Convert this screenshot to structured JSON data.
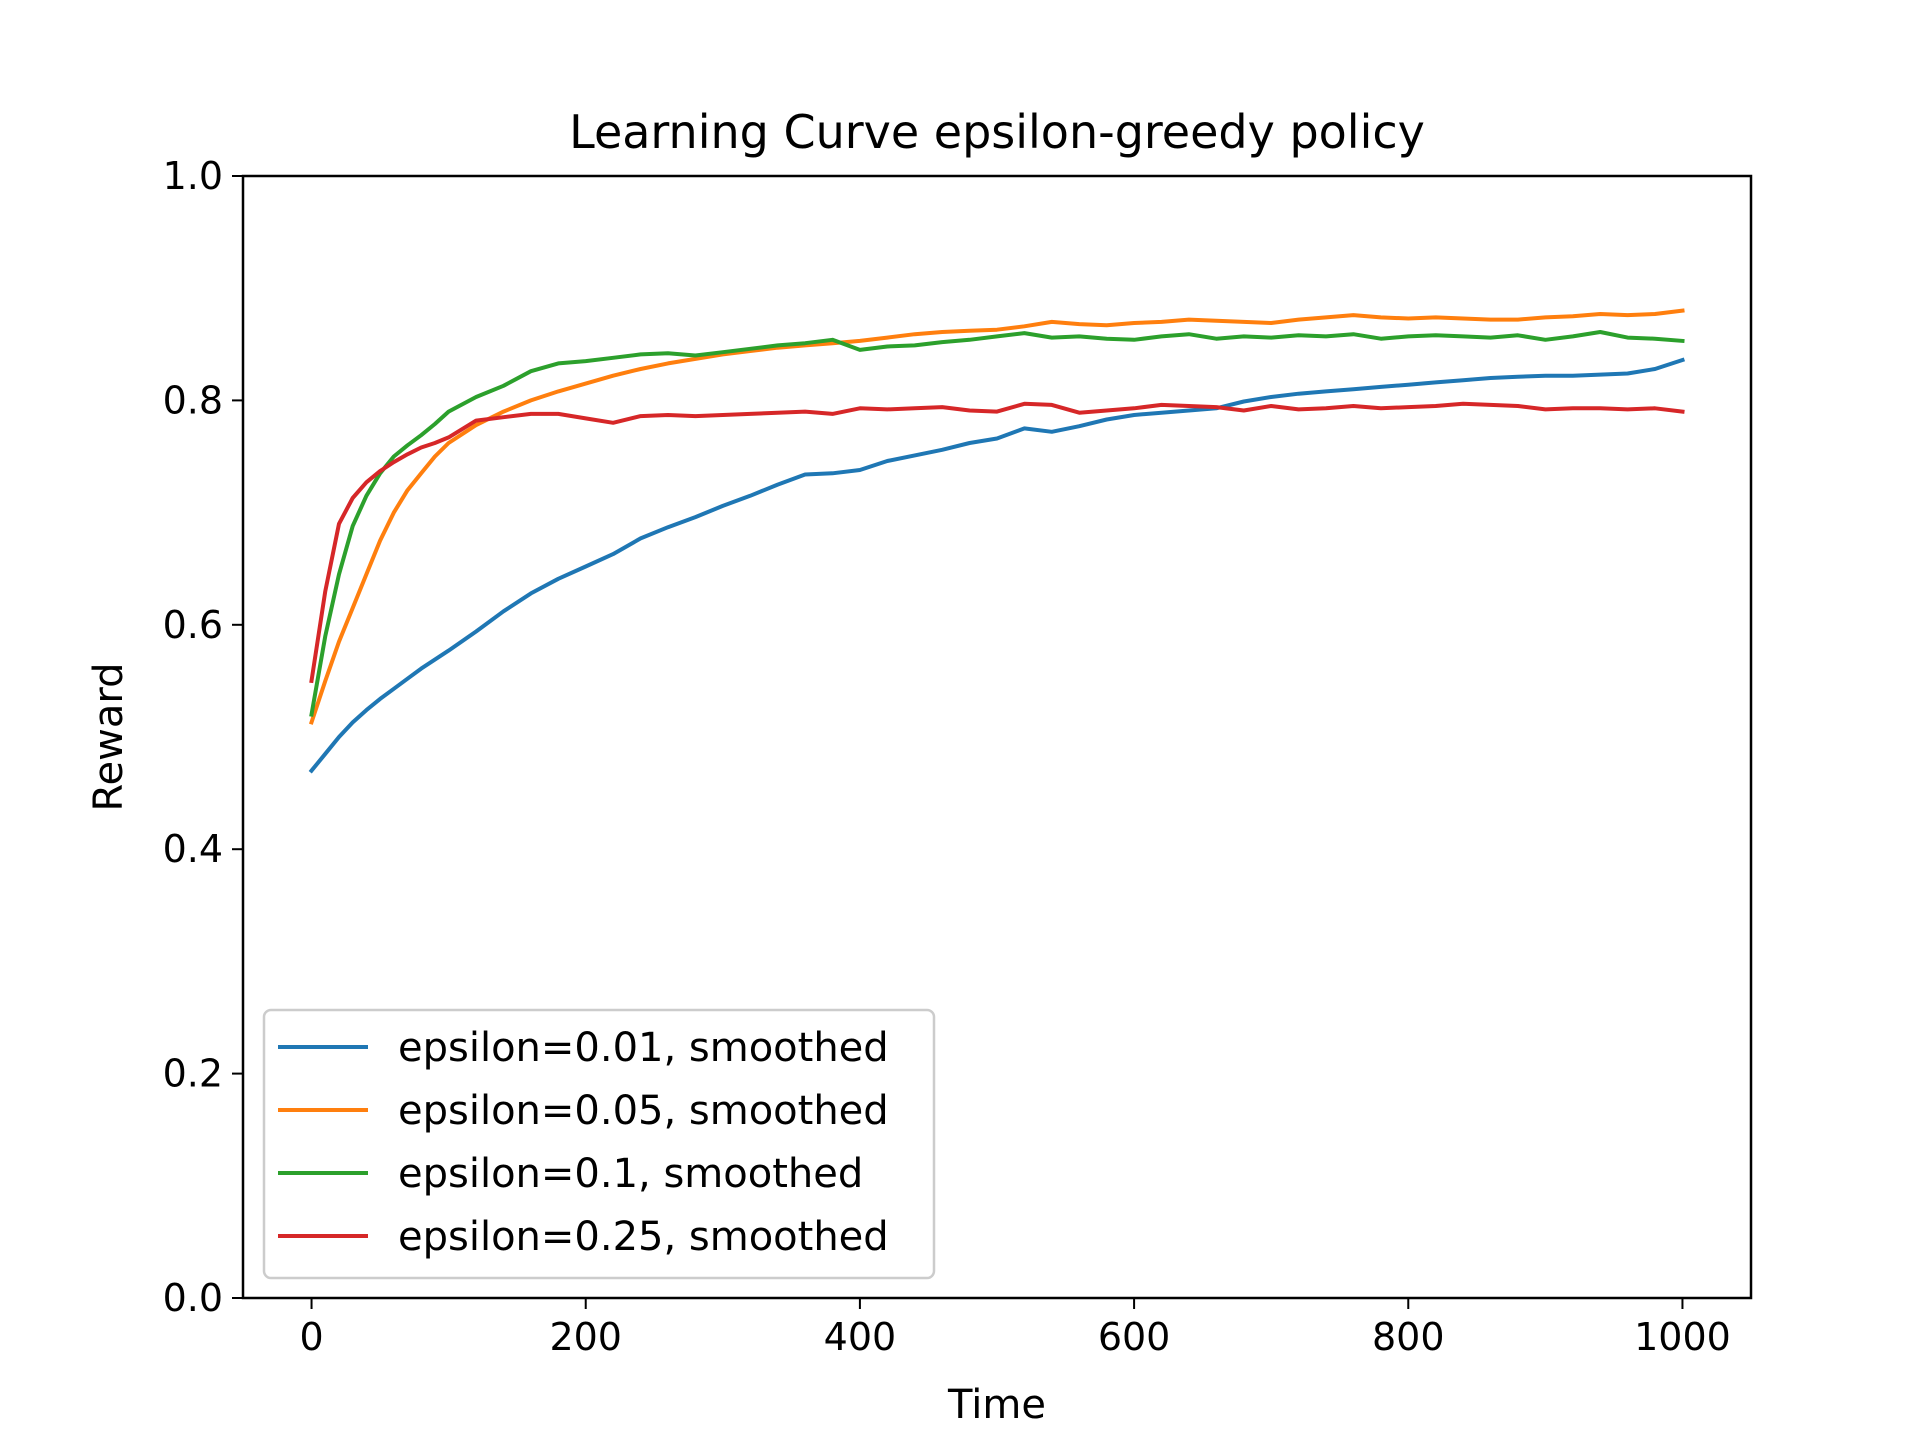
{
  "chart_data": {
    "type": "line",
    "title": "Learning Curve epsilon-greedy policy",
    "xlabel": "Time",
    "ylabel": "Reward",
    "xlim": [
      -50,
      1050
    ],
    "ylim": [
      0.0,
      1.0
    ],
    "xticks": [
      0,
      200,
      400,
      600,
      800,
      1000
    ],
    "xtick_labels": [
      "0",
      "200",
      "400",
      "600",
      "800",
      "1000"
    ],
    "yticks": [
      0.0,
      0.2,
      0.4,
      0.6,
      0.8,
      1.0
    ],
    "ytick_labels": [
      "0.0",
      "0.2",
      "0.4",
      "0.6",
      "0.8",
      "1.0"
    ],
    "grid": false,
    "legend_position": "lower-left",
    "x": [
      0,
      10,
      20,
      30,
      40,
      50,
      60,
      70,
      80,
      90,
      100,
      120,
      140,
      160,
      180,
      200,
      220,
      240,
      260,
      280,
      300,
      320,
      340,
      360,
      380,
      400,
      420,
      440,
      460,
      480,
      500,
      520,
      540,
      560,
      580,
      600,
      620,
      640,
      660,
      680,
      700,
      720,
      740,
      760,
      780,
      800,
      820,
      840,
      860,
      880,
      900,
      920,
      940,
      960,
      980,
      1000
    ],
    "series": [
      {
        "name": "epsilon=0.01, smoothed",
        "color": "#1f77b4",
        "values": [
          0.47,
          0.485,
          0.5,
          0.513,
          0.524,
          0.534,
          0.543,
          0.552,
          0.561,
          0.569,
          0.577,
          0.594,
          0.612,
          0.628,
          0.641,
          0.652,
          0.663,
          0.677,
          0.687,
          0.696,
          0.706,
          0.715,
          0.725,
          0.734,
          0.735,
          0.738,
          0.746,
          0.751,
          0.756,
          0.762,
          0.766,
          0.775,
          0.772,
          0.777,
          0.783,
          0.787,
          0.789,
          0.791,
          0.793,
          0.799,
          0.803,
          0.806,
          0.808,
          0.81,
          0.812,
          0.814,
          0.816,
          0.818,
          0.82,
          0.821,
          0.822,
          0.822,
          0.823,
          0.824,
          0.828,
          0.836
        ]
      },
      {
        "name": "epsilon=0.05, smoothed",
        "color": "#ff7f0e",
        "values": [
          0.513,
          0.55,
          0.585,
          0.615,
          0.645,
          0.675,
          0.7,
          0.72,
          0.735,
          0.75,
          0.762,
          0.778,
          0.79,
          0.8,
          0.808,
          0.815,
          0.822,
          0.828,
          0.833,
          0.837,
          0.841,
          0.844,
          0.847,
          0.849,
          0.851,
          0.853,
          0.856,
          0.859,
          0.861,
          0.862,
          0.863,
          0.866,
          0.87,
          0.868,
          0.867,
          0.869,
          0.87,
          0.872,
          0.871,
          0.87,
          0.869,
          0.872,
          0.874,
          0.876,
          0.874,
          0.873,
          0.874,
          0.873,
          0.872,
          0.872,
          0.874,
          0.875,
          0.877,
          0.876,
          0.877,
          0.88
        ]
      },
      {
        "name": "epsilon=0.1, smoothed",
        "color": "#2ca02c",
        "values": [
          0.52,
          0.59,
          0.645,
          0.688,
          0.715,
          0.735,
          0.75,
          0.76,
          0.769,
          0.779,
          0.79,
          0.803,
          0.813,
          0.826,
          0.833,
          0.835,
          0.838,
          0.841,
          0.842,
          0.84,
          0.843,
          0.846,
          0.849,
          0.851,
          0.854,
          0.845,
          0.848,
          0.849,
          0.852,
          0.854,
          0.857,
          0.86,
          0.856,
          0.857,
          0.855,
          0.854,
          0.857,
          0.859,
          0.855,
          0.857,
          0.856,
          0.858,
          0.857,
          0.859,
          0.855,
          0.857,
          0.858,
          0.857,
          0.856,
          0.858,
          0.854,
          0.857,
          0.861,
          0.856,
          0.855,
          0.853
        ]
      },
      {
        "name": "epsilon=0.25, smoothed",
        "color": "#d62728",
        "values": [
          0.55,
          0.63,
          0.69,
          0.713,
          0.727,
          0.737,
          0.745,
          0.752,
          0.758,
          0.762,
          0.767,
          0.782,
          0.785,
          0.788,
          0.788,
          0.784,
          0.78,
          0.786,
          0.787,
          0.786,
          0.787,
          0.788,
          0.789,
          0.79,
          0.788,
          0.793,
          0.792,
          0.793,
          0.794,
          0.791,
          0.79,
          0.797,
          0.796,
          0.789,
          0.791,
          0.793,
          0.796,
          0.795,
          0.794,
          0.791,
          0.795,
          0.792,
          0.793,
          0.795,
          0.793,
          0.794,
          0.795,
          0.797,
          0.796,
          0.795,
          0.792,
          0.793,
          0.793,
          0.792,
          0.793,
          0.79
        ]
      }
    ]
  }
}
